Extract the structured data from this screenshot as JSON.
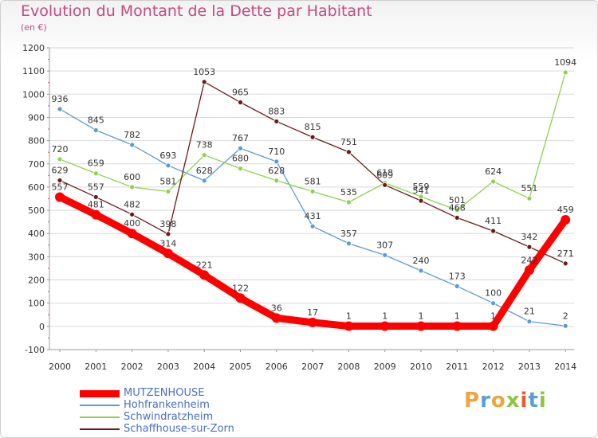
{
  "header": {
    "title": "Evolution du Montant de la Dette par Habitant",
    "unit": "(en €)"
  },
  "colors": {
    "title": "#c44a80",
    "legend_text": "#4a6fc8",
    "grid": "#d9d9d9"
  },
  "logo": {
    "letters": [
      "P",
      "r",
      "o",
      "x",
      "i",
      "t",
      "i"
    ],
    "colors": [
      "#f2a33a",
      "#5a9fd4",
      "#f2a33a",
      "#8cc63f",
      "#e65c2e",
      "#5a9fd4",
      "#8cc63f"
    ]
  },
  "chart_data": {
    "type": "line",
    "title": "Evolution du Montant de la Dette par Habitant",
    "subtitle": "(en €)",
    "xlabel": "",
    "ylabel": "",
    "x": [
      "2000",
      "2001",
      "2002",
      "2003",
      "2004",
      "2005",
      "2006",
      "2007",
      "2008",
      "2009",
      "2010",
      "2011",
      "2012",
      "2013",
      "2014"
    ],
    "ylim": [
      -100,
      1200
    ],
    "yticks": [
      -100,
      0,
      100,
      200,
      300,
      400,
      500,
      600,
      700,
      800,
      900,
      1000,
      1100,
      1200
    ],
    "grid": "horizontal",
    "legend_position": "bottom-left",
    "series": [
      {
        "name": "MUTZENHOUSE",
        "color": "#ff0000",
        "values": [
          557,
          481,
          400,
          314,
          221,
          122,
          36,
          17,
          1,
          1,
          1,
          1,
          1,
          242,
          459
        ]
      },
      {
        "name": "Hohfrankenheim",
        "color": "#5b9bd5",
        "values": [
          936,
          845,
          782,
          693,
          628,
          767,
          710,
          431,
          357,
          307,
          240,
          173,
          100,
          21,
          2
        ]
      },
      {
        "name": "Schwindratzheim",
        "color": "#8fd14f",
        "values": [
          720,
          659,
          600,
          581,
          738,
          680,
          628,
          581,
          535,
          618,
          559,
          501,
          624,
          551,
          1094
        ]
      },
      {
        "name": "Schaffhouse-sur-Zorn",
        "color": "#6b1a1a",
        "values": [
          629,
          557,
          482,
          398,
          1053,
          965,
          883,
          815,
          751,
          609,
          541,
          468,
          411,
          342,
          271
        ]
      }
    ]
  }
}
